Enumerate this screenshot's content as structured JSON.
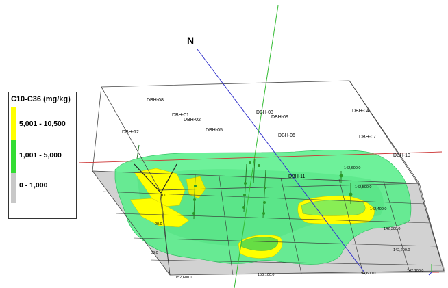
{
  "north_label": "N",
  "legend": {
    "title": "C10-C36 (mg/kg)",
    "items": [
      {
        "label": "5,001 - 10,500",
        "color": "#ffff00"
      },
      {
        "label": "1,001 - 5,000",
        "color": "#33dd33"
      },
      {
        "label": "0 - 1,000",
        "color": "#c8c8c8"
      }
    ]
  },
  "boreholes": [
    "DBH-08",
    "DBH-01",
    "DBH-02",
    "DBH-12",
    "DBH-05",
    "DBH-03",
    "DBH-09",
    "DBH-06",
    "DBH-04",
    "DBH-07",
    "DBH-10",
    "DBH-11"
  ],
  "depth_labels": [
    "10.0",
    "20.0",
    "30.0"
  ],
  "easting_labels": [
    "152,600.0",
    "153,100.0",
    "154,600.0"
  ],
  "northing_labels": [
    "142,600.0",
    "142,500.0",
    "142,400.0",
    "142,300.0",
    "142,200.0",
    "142,100.0"
  ]
}
